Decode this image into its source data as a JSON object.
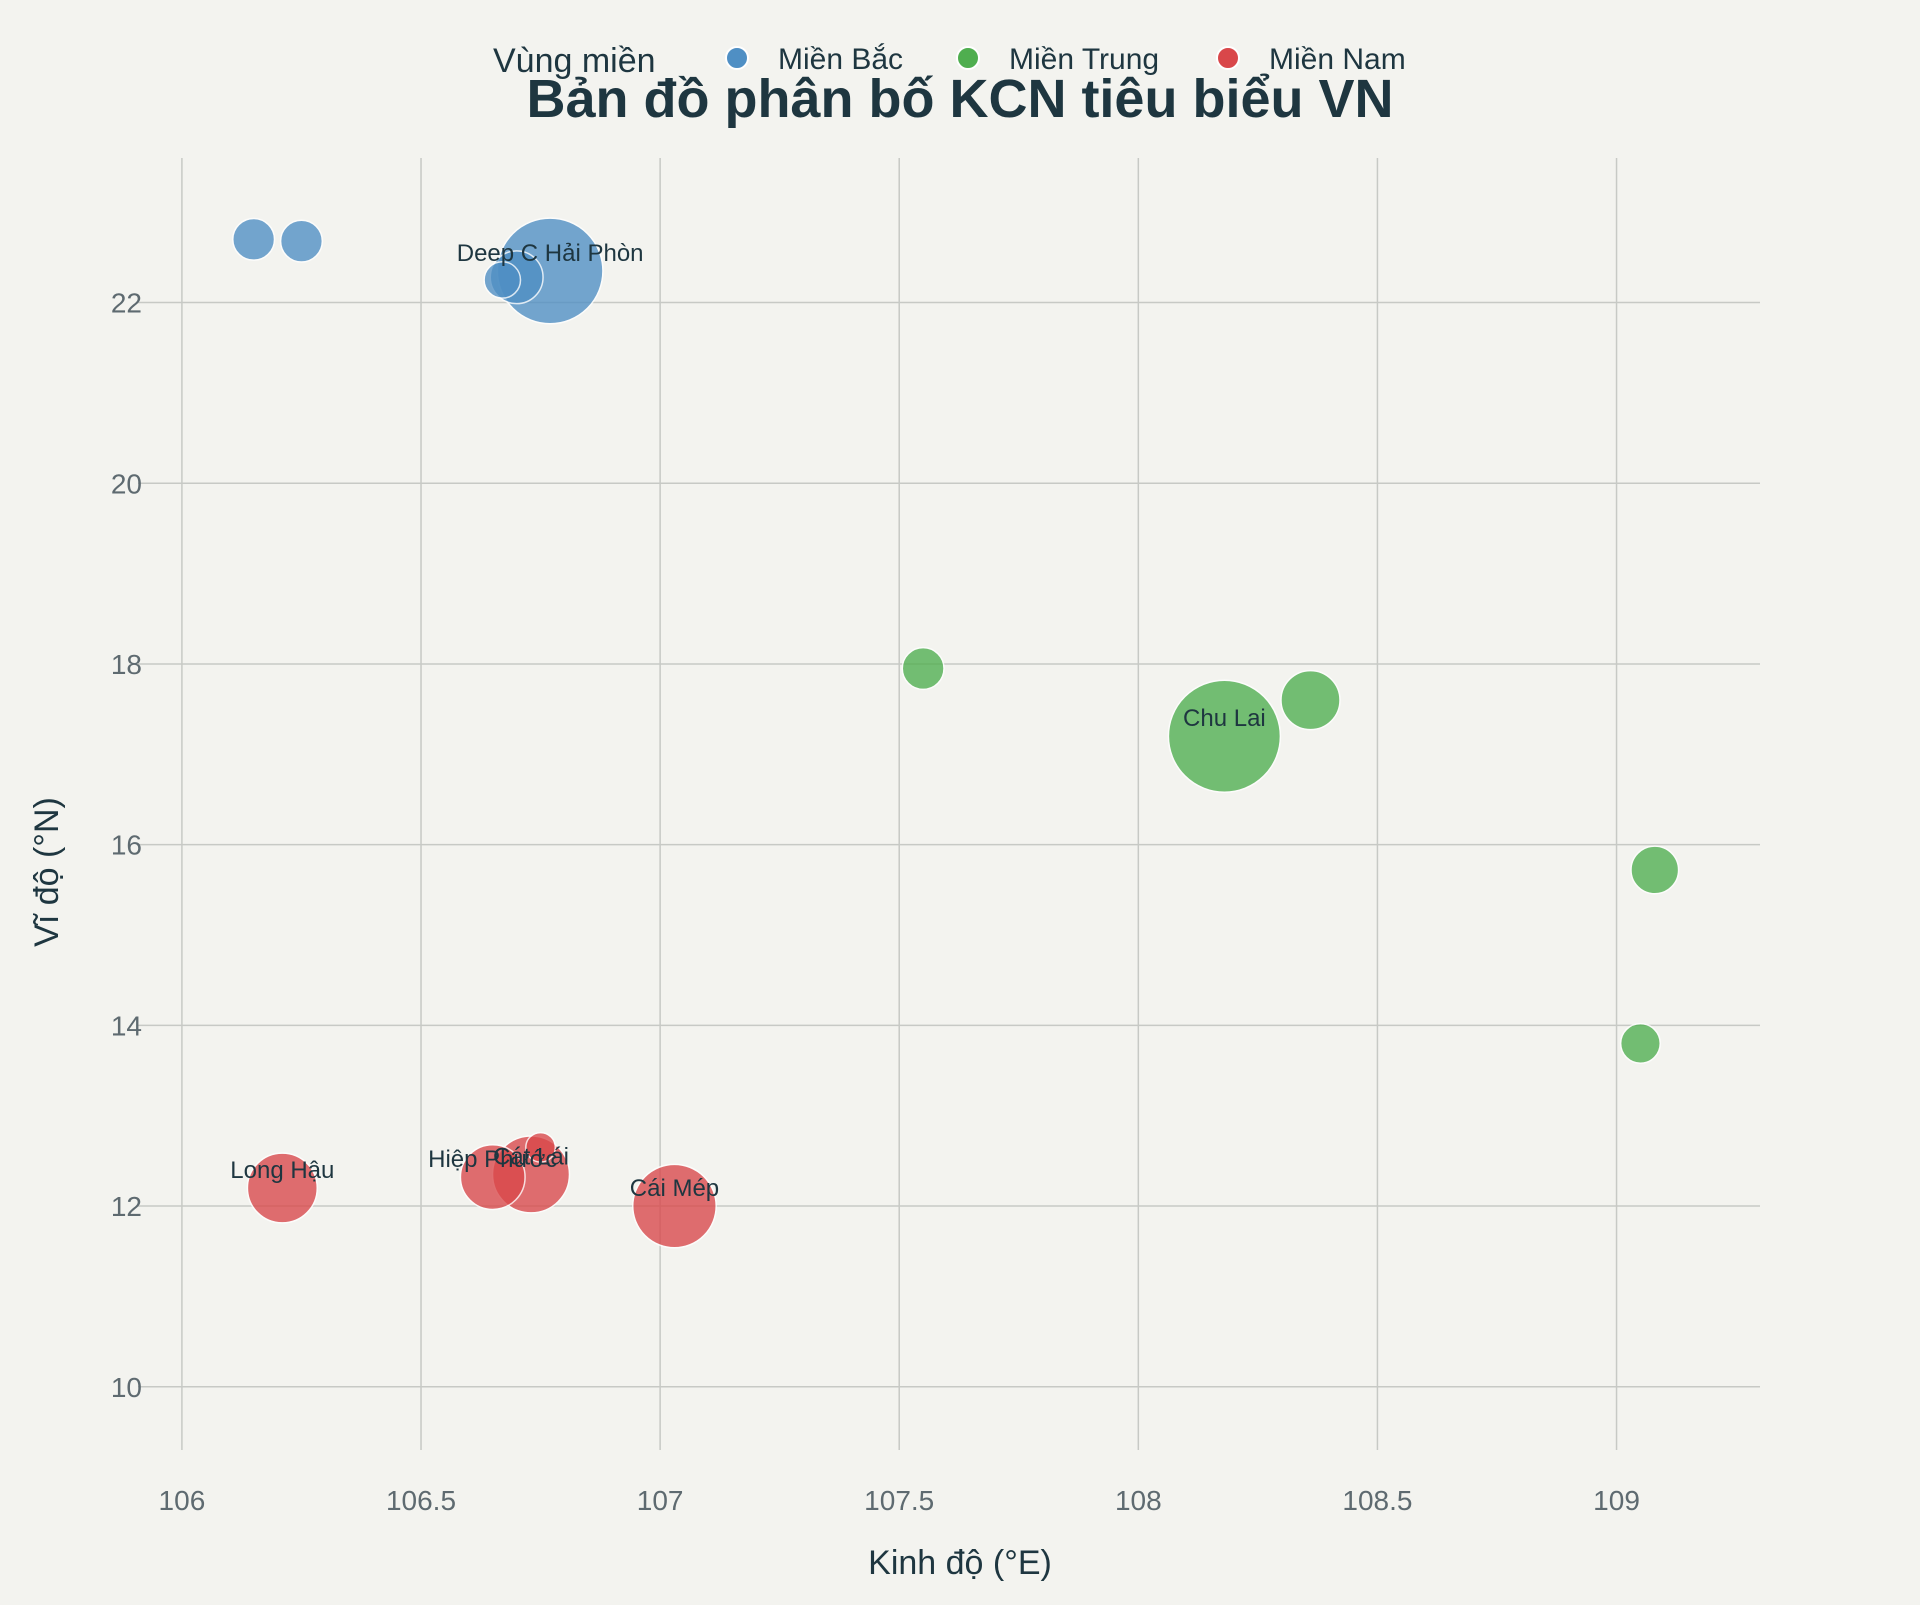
{
  "chart_data": {
    "type": "scatter",
    "title": "Bản đồ phân bố KCN tiêu biểu VN",
    "xlabel": "Kinh độ (°E)",
    "ylabel": "Vĩ độ (°N)",
    "xlim": [
      105.95,
      109.3
    ],
    "ylim": [
      9.3,
      23.6
    ],
    "x_ticks": [
      106,
      106.5,
      107,
      107.5,
      108,
      108.5,
      109
    ],
    "y_ticks": [
      10,
      12,
      14,
      16,
      18,
      20,
      22
    ],
    "x_tick_labels": [
      "106",
      "106.5",
      "107",
      "107.5",
      "108",
      "108.5",
      "109"
    ],
    "y_tick_labels": [
      "10",
      "12",
      "14",
      "16",
      "18",
      "20",
      "22"
    ],
    "grid": true,
    "legend": {
      "title": "Vùng miền",
      "position": "top-center",
      "items": [
        {
          "name": "Miền Bắc",
          "color": "#4f8fc4"
        },
        {
          "name": "Miền Trung",
          "color": "#4fae4f"
        },
        {
          "name": "Miền Nam",
          "color": "#d9474a"
        }
      ]
    },
    "series": [
      {
        "name": "Miền Bắc",
        "color": "#4f8fc4",
        "points": [
          {
            "x": 106.15,
            "y": 22.7,
            "size": 500,
            "label": ""
          },
          {
            "x": 106.25,
            "y": 22.68,
            "size": 500,
            "label": ""
          },
          {
            "x": 106.77,
            "y": 22.35,
            "size": 3200,
            "label": "Deep C Hải Phòn"
          },
          {
            "x": 106.7,
            "y": 22.28,
            "size": 800,
            "label": ""
          },
          {
            "x": 106.67,
            "y": 22.25,
            "size": 380,
            "label": ""
          }
        ]
      },
      {
        "name": "Miền Trung",
        "color": "#4fae4f",
        "points": [
          {
            "x": 107.55,
            "y": 17.95,
            "size": 500,
            "label": ""
          },
          {
            "x": 108.36,
            "y": 17.6,
            "size": 1000,
            "label": ""
          },
          {
            "x": 108.18,
            "y": 17.2,
            "size": 3600,
            "label": "Chu Lai"
          },
          {
            "x": 109.08,
            "y": 15.72,
            "size": 650,
            "label": ""
          },
          {
            "x": 109.05,
            "y": 13.8,
            "size": 450,
            "label": ""
          }
        ]
      },
      {
        "name": "Miền Nam",
        "color": "#d9474a",
        "points": [
          {
            "x": 106.21,
            "y": 12.2,
            "size": 1400,
            "label": "Long Hậu"
          },
          {
            "x": 106.65,
            "y": 12.32,
            "size": 1200,
            "label": "Hiệp Phước"
          },
          {
            "x": 106.73,
            "y": 12.35,
            "size": 1700,
            "label": "Cát Lái"
          },
          {
            "x": 106.75,
            "y": 12.65,
            "size": 250,
            "label": ""
          },
          {
            "x": 107.03,
            "y": 12.0,
            "size": 2000,
            "label": "Cái Mép"
          }
        ]
      }
    ]
  }
}
